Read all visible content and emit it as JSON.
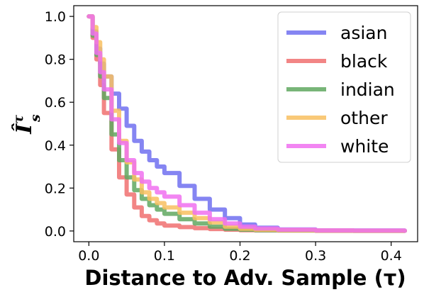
{
  "chart_data": {
    "type": "line",
    "title": "",
    "xlabel": "Distance to Adv. Sample (τ)",
    "ylabel": "Î",
    "ylabel_sup": "τ",
    "ylabel_sub": "s",
    "xlim": [
      -0.02,
      0.435
    ],
    "ylim": [
      -0.05,
      1.05
    ],
    "xticks": [
      "0.0",
      "0.1",
      "0.2",
      "0.3",
      "0.4"
    ],
    "xtick_values": [
      0.0,
      0.1,
      0.2,
      0.3,
      0.4
    ],
    "yticks": [
      "0.0",
      "0.2",
      "0.4",
      "0.6",
      "0.8",
      "1.0"
    ],
    "ytick_values": [
      0.0,
      0.2,
      0.4,
      0.6,
      0.8,
      1.0
    ],
    "grid": false,
    "legend_position": "top-right",
    "series": [
      {
        "name": "asian",
        "color": "#7070f0",
        "x": [
          0.0,
          0.005,
          0.01,
          0.015,
          0.02,
          0.03,
          0.04,
          0.05,
          0.06,
          0.07,
          0.08,
          0.09,
          0.1,
          0.12,
          0.14,
          0.16,
          0.18,
          0.2,
          0.22,
          0.25,
          0.3,
          0.35,
          0.418
        ],
        "y": [
          1.0,
          0.93,
          0.85,
          0.78,
          0.72,
          0.64,
          0.57,
          0.49,
          0.42,
          0.37,
          0.33,
          0.3,
          0.27,
          0.21,
          0.15,
          0.1,
          0.06,
          0.03,
          0.015,
          0.007,
          0.003,
          0.002,
          0.001
        ]
      },
      {
        "name": "black",
        "color": "#f07070",
        "x": [
          0.0,
          0.005,
          0.01,
          0.015,
          0.02,
          0.03,
          0.04,
          0.05,
          0.06,
          0.07,
          0.08,
          0.09,
          0.1,
          0.12,
          0.14,
          0.16,
          0.18,
          0.2,
          0.22,
          0.25,
          0.3,
          0.35,
          0.418
        ],
        "y": [
          1.0,
          0.9,
          0.8,
          0.68,
          0.55,
          0.38,
          0.25,
          0.17,
          0.11,
          0.07,
          0.05,
          0.035,
          0.025,
          0.018,
          0.013,
          0.009,
          0.006,
          0.004,
          0.003,
          0.002,
          0.001,
          0.001,
          0.001
        ]
      },
      {
        "name": "indian",
        "color": "#60a860",
        "x": [
          0.0,
          0.005,
          0.01,
          0.015,
          0.02,
          0.03,
          0.04,
          0.05,
          0.06,
          0.07,
          0.08,
          0.09,
          0.1,
          0.12,
          0.14,
          0.16,
          0.18,
          0.2,
          0.22,
          0.25,
          0.3,
          0.35,
          0.418
        ],
        "y": [
          1.0,
          0.91,
          0.82,
          0.72,
          0.62,
          0.45,
          0.33,
          0.25,
          0.19,
          0.15,
          0.12,
          0.1,
          0.08,
          0.055,
          0.035,
          0.02,
          0.01,
          0.006,
          0.004,
          0.003,
          0.002,
          0.001,
          0.001
        ]
      },
      {
        "name": "other",
        "color": "#f8c060",
        "x": [
          0.0,
          0.005,
          0.01,
          0.015,
          0.02,
          0.03,
          0.04,
          0.05,
          0.06,
          0.07,
          0.08,
          0.09,
          0.1,
          0.12,
          0.14,
          0.16,
          0.18,
          0.2,
          0.22,
          0.25,
          0.3,
          0.35,
          0.418
        ],
        "y": [
          1.0,
          0.95,
          0.88,
          0.8,
          0.72,
          0.56,
          0.42,
          0.32,
          0.24,
          0.18,
          0.15,
          0.13,
          0.11,
          0.085,
          0.06,
          0.04,
          0.02,
          0.01,
          0.006,
          0.004,
          0.002,
          0.001,
          0.001
        ]
      },
      {
        "name": "white",
        "color": "#f070f0",
        "x": [
          0.0,
          0.005,
          0.01,
          0.015,
          0.02,
          0.03,
          0.04,
          0.05,
          0.06,
          0.07,
          0.08,
          0.09,
          0.1,
          0.12,
          0.14,
          0.16,
          0.18,
          0.2,
          0.22,
          0.25,
          0.3,
          0.35,
          0.418
        ],
        "y": [
          1.0,
          0.92,
          0.83,
          0.74,
          0.66,
          0.52,
          0.41,
          0.33,
          0.27,
          0.23,
          0.2,
          0.18,
          0.16,
          0.12,
          0.085,
          0.055,
          0.035,
          0.02,
          0.012,
          0.006,
          0.003,
          0.002,
          0.001
        ]
      }
    ]
  }
}
